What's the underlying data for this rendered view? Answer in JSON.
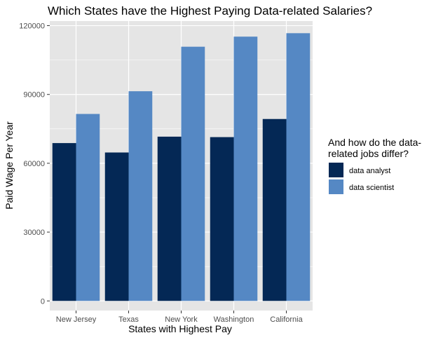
{
  "chart_data": {
    "type": "bar",
    "title": "Which States have the Highest Paying Data-related Salaries?",
    "xlabel": "States with Highest Pay",
    "ylabel": "Paid Wage Per Year",
    "categories": [
      "New Jersey",
      "Texas",
      "New York",
      "Washington",
      "California"
    ],
    "series": [
      {
        "name": "data analyst",
        "color": "#042855",
        "values": [
          68800,
          64700,
          71600,
          71400,
          79300
        ]
      },
      {
        "name": "data scientist",
        "color": "#5588c4",
        "values": [
          81500,
          91400,
          110800,
          115200,
          116700
        ]
      }
    ],
    "ylim": [
      -4200,
      122000
    ],
    "yticks": [
      0,
      30000,
      60000,
      90000,
      120000
    ],
    "ytick_labels": [
      "0",
      "30000",
      "60000",
      "90000",
      "120000"
    ],
    "legend": {
      "title_lines": [
        "And how do the data-",
        "related jobs differ?"
      ],
      "placement": "right"
    },
    "colors": {
      "panel": "#e5e5e5",
      "grid": "#ffffff"
    }
  }
}
